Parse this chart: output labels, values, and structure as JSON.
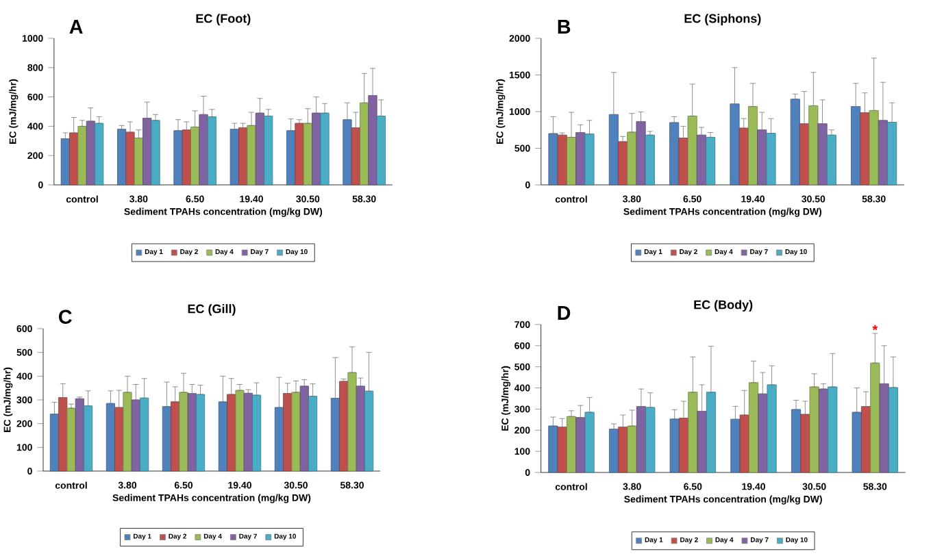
{
  "chart_data": [
    {
      "type": "bar",
      "title": "EC (Foot)",
      "xlabel": "Sediment TPAHs concentration (mg/kg DW)",
      "ylabel": "EC (mJ/mg/hr)",
      "categories": [
        "control",
        "3.80",
        "6.50",
        "19.40",
        "30.50",
        "58.30"
      ],
      "ylim": [
        0,
        1000
      ],
      "yticks": [
        0,
        200,
        400,
        600,
        800,
        1000
      ],
      "legend": "bottom",
      "annotations": [
        "A"
      ],
      "series": [
        {
          "name": "Day 1",
          "color": "#4f81bd",
          "values": [
            315,
            380,
            370,
            380,
            370,
            445
          ],
          "errors": [
            [
              315,
              355
            ],
            [
              380,
              405
            ],
            [
              370,
              445
            ],
            [
              380,
              420
            ],
            [
              370,
              450
            ],
            [
              445,
              560
            ]
          ]
        },
        {
          "name": "Day 2",
          "color": "#c0504d",
          "values": [
            355,
            360,
            375,
            390,
            420,
            390
          ],
          "errors": [
            [
              355,
              460
            ],
            [
              360,
              430
            ],
            [
              375,
              430
            ],
            [
              390,
              420
            ],
            [
              420,
              445
            ],
            [
              390,
              495
            ]
          ]
        },
        {
          "name": "Day 4",
          "color": "#9bbb59",
          "values": [
            400,
            320,
            395,
            405,
            420,
            560
          ],
          "errors": [
            [
              400,
              440
            ],
            [
              320,
              375
            ],
            [
              395,
              505
            ],
            [
              405,
              495
            ],
            [
              420,
              520
            ],
            [
              560,
              760
            ]
          ]
        },
        {
          "name": "Day 7",
          "color": "#8064a2",
          "values": [
            435,
            455,
            480,
            490,
            490,
            610
          ],
          "errors": [
            [
              435,
              525
            ],
            [
              455,
              565
            ],
            [
              480,
              605
            ],
            [
              490,
              590
            ],
            [
              490,
              600
            ],
            [
              610,
              795
            ]
          ]
        },
        {
          "name": "Day 10",
          "color": "#4bacc6",
          "values": [
            420,
            440,
            465,
            470,
            490,
            470
          ],
          "errors": [
            [
              420,
              465
            ],
            [
              440,
              480
            ],
            [
              465,
              515
            ],
            [
              470,
              515
            ],
            [
              490,
              555
            ],
            [
              470,
              580
            ]
          ]
        }
      ]
    },
    {
      "type": "bar",
      "title": "EC (Siphons)",
      "xlabel": "Sediment TPAHs concentration (mg/kg DW)",
      "ylabel": "EC (mJ/mg/hr)",
      "categories": [
        "control",
        "3.80",
        "6.50",
        "19.40",
        "30.50",
        "58.30"
      ],
      "ylim": [
        0,
        2000
      ],
      "yticks": [
        0,
        500,
        1000,
        1500,
        2000
      ],
      "legend": "bottom",
      "annotations": [
        "B"
      ],
      "series": [
        {
          "name": "Day 1",
          "color": "#4f81bd",
          "values": [
            700,
            960,
            850,
            1105,
            1170,
            1070
          ],
          "errors": [
            [
              700,
              930
            ],
            [
              960,
              1535
            ],
            [
              850,
              930
            ],
            [
              1105,
              1600
            ],
            [
              1170,
              1240
            ],
            [
              1070,
              1385
            ]
          ]
        },
        {
          "name": "Day 2",
          "color": "#c0504d",
          "values": [
            680,
            590,
            640,
            775,
            835,
            985
          ],
          "errors": [
            [
              680,
              710
            ],
            [
              590,
              660
            ],
            [
              640,
              800
            ],
            [
              775,
              905
            ],
            [
              835,
              1275
            ],
            [
              985,
              1255
            ]
          ]
        },
        {
          "name": "Day 4",
          "color": "#9bbb59",
          "values": [
            650,
            720,
            940,
            1070,
            1080,
            1015
          ],
          "errors": [
            [
              650,
              990
            ],
            [
              720,
              975
            ],
            [
              940,
              1375
            ],
            [
              1070,
              1385
            ],
            [
              1080,
              1535
            ],
            [
              1015,
              1730
            ]
          ]
        },
        {
          "name": "Day 7",
          "color": "#8064a2",
          "values": [
            715,
            865,
            680,
            750,
            835,
            880
          ],
          "errors": [
            [
              715,
              820
            ],
            [
              865,
              995
            ],
            [
              680,
              785
            ],
            [
              750,
              990
            ],
            [
              835,
              1160
            ],
            [
              880,
              1400
            ]
          ]
        },
        {
          "name": "Day 10",
          "color": "#4bacc6",
          "values": [
            695,
            680,
            650,
            705,
            680,
            855
          ],
          "errors": [
            [
              695,
              880
            ],
            [
              680,
              730
            ],
            [
              650,
              715
            ],
            [
              705,
              905
            ],
            [
              680,
              750
            ],
            [
              855,
              1120
            ]
          ]
        }
      ]
    },
    {
      "type": "bar",
      "title": "EC (Gill)",
      "xlabel": "Sediment TPAHs concentration (mg/kg DW)",
      "ylabel": "EC (mJ/mg/hr)",
      "categories": [
        "control",
        "3.80",
        "6.50",
        "19.40",
        "30.50",
        "58.30"
      ],
      "ylim": [
        0,
        600
      ],
      "yticks": [
        0,
        100,
        200,
        300,
        400,
        500,
        600
      ],
      "legend": "bottom",
      "annotations": [
        "C"
      ],
      "series": [
        {
          "name": "Day 1",
          "color": "#4f81bd",
          "values": [
            240,
            285,
            272,
            292,
            268,
            307
          ],
          "errors": [
            [
              240,
              290
            ],
            [
              285,
              338
            ],
            [
              272,
              375
            ],
            [
              292,
              400
            ],
            [
              268,
              395
            ],
            [
              307,
              478
            ]
          ]
        },
        {
          "name": "Day 2",
          "color": "#c0504d",
          "values": [
            310,
            268,
            292,
            323,
            327,
            378
          ],
          "errors": [
            [
              310,
              368
            ],
            [
              268,
              340
            ],
            [
              292,
              355
            ],
            [
              323,
              390
            ],
            [
              327,
              370
            ],
            [
              378,
              388
            ]
          ]
        },
        {
          "name": "Day 4",
          "color": "#9bbb59",
          "values": [
            265,
            332,
            332,
            340,
            332,
            415
          ],
          "errors": [
            [
              265,
              282
            ],
            [
              332,
              400
            ],
            [
              332,
              412
            ],
            [
              340,
              365
            ],
            [
              332,
              380
            ],
            [
              415,
              523
            ]
          ]
        },
        {
          "name": "Day 7",
          "color": "#8064a2",
          "values": [
            305,
            300,
            327,
            328,
            358,
            358
          ],
          "errors": [
            [
              305,
              312
            ],
            [
              300,
              365
            ],
            [
              327,
              365
            ],
            [
              328,
              343
            ],
            [
              358,
              385
            ],
            [
              358,
              392
            ]
          ]
        },
        {
          "name": "Day 10",
          "color": "#4bacc6",
          "values": [
            275,
            308,
            323,
            320,
            315,
            337
          ],
          "errors": [
            [
              275,
              338
            ],
            [
              308,
              390
            ],
            [
              323,
              362
            ],
            [
              320,
              372
            ],
            [
              315,
              368
            ],
            [
              337,
              500
            ]
          ]
        }
      ]
    },
    {
      "type": "bar",
      "title": "EC (Body)",
      "xlabel": "Sediment TPAHs concentration (mg/kg DW)",
      "ylabel": "EC (mJ/mg/hr)",
      "categories": [
        "control",
        "3.80",
        "6.50",
        "19.40",
        "30.50",
        "58.30"
      ],
      "ylim": [
        0,
        700
      ],
      "yticks": [
        0,
        100,
        200,
        300,
        400,
        500,
        600,
        700
      ],
      "legend": "bottom",
      "annotations": [
        "D",
        {
          "text": "*",
          "x": "58.30",
          "y": 675
        }
      ],
      "series": [
        {
          "name": "Day 1",
          "color": "#4f81bd",
          "values": [
            220,
            205,
            253,
            252,
            298,
            285
          ],
          "errors": [
            [
              220,
              262
            ],
            [
              205,
              230
            ],
            [
              253,
              297
            ],
            [
              252,
              313
            ],
            [
              298,
              342
            ],
            [
              285,
              400
            ]
          ]
        },
        {
          "name": "Day 2",
          "color": "#c0504d",
          "values": [
            215,
            215,
            257,
            272,
            275,
            312
          ],
          "errors": [
            [
              215,
              255
            ],
            [
              215,
              272
            ],
            [
              257,
              337
            ],
            [
              272,
              388
            ],
            [
              275,
              337
            ],
            [
              312,
              382
            ]
          ]
        },
        {
          "name": "Day 4",
          "color": "#9bbb59",
          "values": [
            265,
            220,
            380,
            425,
            405,
            518
          ],
          "errors": [
            [
              265,
              292
            ],
            [
              220,
              295
            ],
            [
              380,
              547
            ],
            [
              425,
              527
            ],
            [
              405,
              467
            ],
            [
              518,
              658
            ]
          ]
        },
        {
          "name": "Day 7",
          "color": "#8064a2",
          "values": [
            260,
            312,
            290,
            372,
            395,
            420
          ],
          "errors": [
            [
              260,
              317
            ],
            [
              312,
              395
            ],
            [
              290,
              415
            ],
            [
              372,
              473
            ],
            [
              395,
              420
            ],
            [
              420,
              600
            ]
          ]
        },
        {
          "name": "Day 10",
          "color": "#4bacc6",
          "values": [
            285,
            308,
            380,
            415,
            405,
            402
          ],
          "errors": [
            [
              285,
              355
            ],
            [
              308,
              377
            ],
            [
              380,
              597
            ],
            [
              415,
              505
            ],
            [
              405,
              563
            ],
            [
              402,
              547
            ]
          ]
        }
      ]
    }
  ]
}
